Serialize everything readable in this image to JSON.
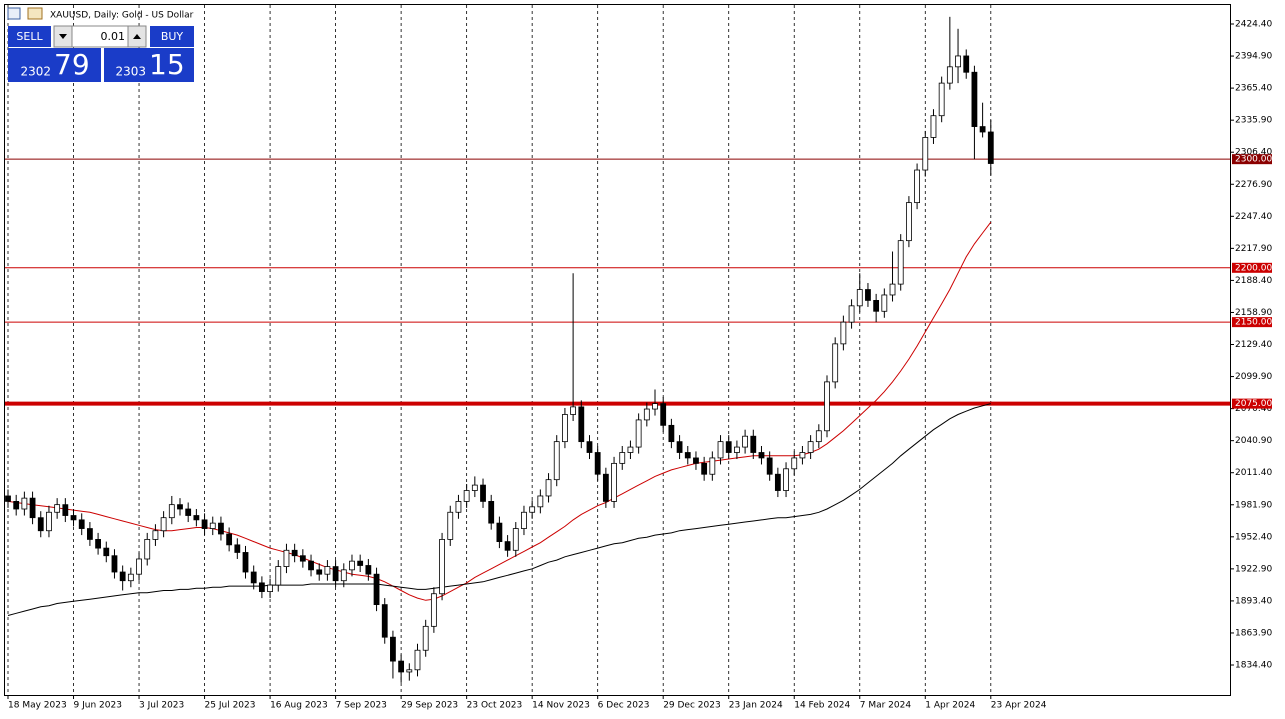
{
  "chart_data": {
    "type": "candlestick",
    "title": "XAUUSD, Daily:  Gold - US Dollar",
    "trade_panel": {
      "sell": "SELL",
      "buy": "BUY",
      "volume": "0.01",
      "bid_big": "2302",
      "bid_small": "79",
      "ask_big": "2303",
      "ask_small": "15"
    },
    "categories": [
      "18 May 2023",
      null,
      null,
      null,
      null,
      null,
      null,
      null,
      "9 Jun 2023",
      null,
      null,
      null,
      null,
      null,
      null,
      null,
      "3 Jul 2023",
      null,
      null,
      null,
      null,
      null,
      null,
      null,
      "25 Jul 2023",
      null,
      null,
      null,
      null,
      null,
      null,
      null,
      "16 Aug 2023",
      null,
      null,
      null,
      null,
      null,
      null,
      null,
      "7 Sep 2023",
      null,
      null,
      null,
      null,
      null,
      null,
      null,
      "29 Sep 2023",
      null,
      null,
      null,
      null,
      null,
      null,
      null,
      "23 Oct 2023",
      null,
      null,
      null,
      null,
      null,
      null,
      null,
      "14 Nov 2023",
      null,
      null,
      null,
      null,
      null,
      null,
      null,
      "6 Dec 2023",
      null,
      null,
      null,
      null,
      null,
      null,
      null,
      "29 Dec 2023",
      null,
      null,
      null,
      null,
      null,
      null,
      null,
      "23 Jan 2024",
      null,
      null,
      null,
      null,
      null,
      null,
      null,
      "14 Feb 2024",
      null,
      null,
      null,
      null,
      null,
      null,
      null,
      "7 Mar 2024",
      null,
      null,
      null,
      null,
      null,
      null,
      null,
      "1 Apr 2024",
      null,
      null,
      null,
      null,
      null,
      null,
      null,
      "23 Apr 2024"
    ],
    "ohlc": [
      [
        1990,
        1996,
        1979,
        1985
      ],
      [
        1985,
        1991,
        1972,
        1978
      ],
      [
        1978,
        1994,
        1972,
        1988
      ],
      [
        1988,
        1994,
        1964,
        1970
      ],
      [
        1970,
        1976,
        1952,
        1958
      ],
      [
        1958,
        1981,
        1952,
        1975
      ],
      [
        1975,
        1988,
        1969,
        1982
      ],
      [
        1982,
        1988,
        1966,
        1972
      ],
      [
        1972,
        1978,
        1962,
        1968
      ],
      [
        1968,
        1974,
        1954,
        1960
      ],
      [
        1960,
        1966,
        1944,
        1950
      ],
      [
        1950,
        1956,
        1936,
        1942
      ],
      [
        1942,
        1948,
        1929,
        1935
      ],
      [
        1935,
        1941,
        1914,
        1920
      ],
      [
        1920,
        1926,
        1903,
        1912
      ],
      [
        1912,
        1924,
        1906,
        1918
      ],
      [
        1918,
        1938,
        1912,
        1932
      ],
      [
        1932,
        1956,
        1926,
        1950
      ],
      [
        1950,
        1964,
        1944,
        1958
      ],
      [
        1958,
        1976,
        1952,
        1970
      ],
      [
        1970,
        1990,
        1964,
        1982
      ],
      [
        1982,
        1988,
        1972,
        1978
      ],
      [
        1978,
        1984,
        1966,
        1972
      ],
      [
        1972,
        1978,
        1962,
        1968
      ],
      [
        1968,
        1974,
        1954,
        1960
      ],
      [
        1960,
        1971,
        1954,
        1965
      ],
      [
        1965,
        1971,
        1949,
        1955
      ],
      [
        1955,
        1961,
        1939,
        1945
      ],
      [
        1945,
        1951,
        1932,
        1938
      ],
      [
        1938,
        1944,
        1914,
        1920
      ],
      [
        1920,
        1926,
        1904,
        1910
      ],
      [
        1910,
        1916,
        1896,
        1902
      ],
      [
        1902,
        1914,
        1896,
        1908
      ],
      [
        1908,
        1931,
        1902,
        1925
      ],
      [
        1925,
        1946,
        1919,
        1940
      ],
      [
        1940,
        1946,
        1929,
        1935
      ],
      [
        1935,
        1941,
        1924,
        1930
      ],
      [
        1930,
        1936,
        1916,
        1922
      ],
      [
        1922,
        1928,
        1912,
        1918
      ],
      [
        1918,
        1931,
        1912,
        1925
      ],
      [
        1925,
        1931,
        1906,
        1912
      ],
      [
        1912,
        1928,
        1906,
        1922
      ],
      [
        1922,
        1936,
        1916,
        1930
      ],
      [
        1930,
        1936,
        1920,
        1926
      ],
      [
        1926,
        1932,
        1912,
        1918
      ],
      [
        1918,
        1924,
        1884,
        1890
      ],
      [
        1890,
        1896,
        1854,
        1860
      ],
      [
        1860,
        1866,
        1822,
        1838
      ],
      [
        1838,
        1844,
        1818,
        1828
      ],
      [
        1828,
        1836,
        1820,
        1830
      ],
      [
        1830,
        1854,
        1824,
        1848
      ],
      [
        1848,
        1876,
        1842,
        1870
      ],
      [
        1870,
        1906,
        1864,
        1900
      ],
      [
        1900,
        1956,
        1894,
        1950
      ],
      [
        1950,
        1981,
        1944,
        1975
      ],
      [
        1975,
        1991,
        1969,
        1985
      ],
      [
        1985,
        2001,
        1979,
        1995
      ],
      [
        1995,
        2008,
        1989,
        2000
      ],
      [
        2000,
        2006,
        1979,
        1985
      ],
      [
        1985,
        1991,
        1959,
        1965
      ],
      [
        1965,
        1971,
        1942,
        1948
      ],
      [
        1948,
        1954,
        1934,
        1940
      ],
      [
        1940,
        1966,
        1934,
        1960
      ],
      [
        1960,
        1981,
        1954,
        1975
      ],
      [
        1975,
        1986,
        1969,
        1980
      ],
      [
        1980,
        1996,
        1974,
        1990
      ],
      [
        1990,
        2011,
        1984,
        2005
      ],
      [
        2005,
        2046,
        1999,
        2040
      ],
      [
        2040,
        2071,
        2034,
        2065
      ],
      [
        2065,
        2195,
        2059,
        2072
      ],
      [
        2072,
        2078,
        2034,
        2040
      ],
      [
        2040,
        2046,
        2024,
        2030
      ],
      [
        2030,
        2036,
        2004,
        2010
      ],
      [
        2010,
        2016,
        1979,
        1985
      ],
      [
        1985,
        2026,
        1979,
        2020
      ],
      [
        2020,
        2036,
        2014,
        2030
      ],
      [
        2030,
        2041,
        2024,
        2035
      ],
      [
        2035,
        2066,
        2029,
        2060
      ],
      [
        2060,
        2076,
        2054,
        2070
      ],
      [
        2070,
        2088,
        2064,
        2075
      ],
      [
        2075,
        2081,
        2049,
        2055
      ],
      [
        2055,
        2061,
        2034,
        2040
      ],
      [
        2040,
        2046,
        2024,
        2030
      ],
      [
        2030,
        2036,
        2019,
        2025
      ],
      [
        2025,
        2031,
        2014,
        2020
      ],
      [
        2020,
        2026,
        2004,
        2010
      ],
      [
        2010,
        2031,
        2004,
        2025
      ],
      [
        2025,
        2046,
        2019,
        2040
      ],
      [
        2040,
        2046,
        2024,
        2030
      ],
      [
        2030,
        2041,
        2024,
        2035
      ],
      [
        2035,
        2051,
        2029,
        2045
      ],
      [
        2045,
        2051,
        2024,
        2030
      ],
      [
        2030,
        2036,
        2019,
        2025
      ],
      [
        2025,
        2031,
        2004,
        2010
      ],
      [
        2010,
        2016,
        1989,
        1995
      ],
      [
        1995,
        2021,
        1989,
        2015
      ],
      [
        2015,
        2031,
        2009,
        2025
      ],
      [
        2025,
        2036,
        2019,
        2030
      ],
      [
        2030,
        2046,
        2024,
        2040
      ],
      [
        2040,
        2056,
        2034,
        2050
      ],
      [
        2050,
        2101,
        2044,
        2095
      ],
      [
        2095,
        2136,
        2089,
        2130
      ],
      [
        2130,
        2156,
        2124,
        2150
      ],
      [
        2150,
        2171,
        2144,
        2165
      ],
      [
        2165,
        2195,
        2159,
        2180
      ],
      [
        2180,
        2186,
        2164,
        2170
      ],
      [
        2170,
        2176,
        2150,
        2160
      ],
      [
        2160,
        2181,
        2154,
        2175
      ],
      [
        2175,
        2215,
        2169,
        2185
      ],
      [
        2185,
        2231,
        2179,
        2225
      ],
      [
        2225,
        2266,
        2219,
        2260
      ],
      [
        2260,
        2296,
        2254,
        2290
      ],
      [
        2290,
        2326,
        2284,
        2320
      ],
      [
        2320,
        2346,
        2314,
        2340
      ],
      [
        2340,
        2376,
        2334,
        2370
      ],
      [
        2370,
        2431,
        2364,
        2385
      ],
      [
        2385,
        2420,
        2370,
        2395
      ],
      [
        2395,
        2401,
        2374,
        2380
      ],
      [
        2380,
        2386,
        2300,
        2330
      ],
      [
        2330,
        2352,
        2320,
        2325
      ],
      [
        2325,
        2336,
        2285,
        2296
      ]
    ],
    "moving_averages": [
      {
        "color": "#cc0000",
        "values": [
          1985,
          1984,
          1983,
          1982,
          1981,
          1980,
          1979,
          1978,
          1977,
          1976,
          1975,
          1973,
          1971,
          1969,
          1967,
          1965,
          1963,
          1961,
          1959,
          1958,
          1958,
          1959,
          1960,
          1961,
          1961,
          1960,
          1958,
          1956,
          1954,
          1951,
          1948,
          1945,
          1942,
          1940,
          1938,
          1936,
          1933,
          1930,
          1927,
          1924,
          1922,
          1920,
          1918,
          1917,
          1916,
          1914,
          1911,
          1907,
          1903,
          1899,
          1896,
          1894,
          1895,
          1898,
          1902,
          1906,
          1910,
          1915,
          1919,
          1923,
          1927,
          1931,
          1935,
          1939,
          1943,
          1947,
          1952,
          1957,
          1962,
          1968,
          1973,
          1977,
          1981,
          1984,
          1988,
          1992,
          1996,
          2000,
          2004,
          2008,
          2011,
          2014,
          2016,
          2018,
          2020,
          2021,
          2022,
          2023,
          2024,
          2025,
          2026,
          2027,
          2027,
          2027,
          2027,
          2027,
          2027,
          2028,
          2030,
          2033,
          2038,
          2044,
          2050,
          2057,
          2064,
          2071,
          2078,
          2086,
          2095,
          2105,
          2116,
          2128,
          2141,
          2154,
          2167,
          2180,
          2195,
          2210,
          2222,
          2232,
          2242
        ]
      },
      {
        "color": "#000000",
        "values": [
          1880,
          1882,
          1884,
          1886,
          1888,
          1889,
          1891,
          1892,
          1893,
          1894,
          1895,
          1896,
          1897,
          1898,
          1899,
          1900,
          1901,
          1901,
          1902,
          1903,
          1903,
          1904,
          1904,
          1905,
          1905,
          1906,
          1906,
          1907,
          1907,
          1907,
          1907,
          1907,
          1908,
          1908,
          1908,
          1908,
          1908,
          1909,
          1909,
          1909,
          1909,
          1909,
          1909,
          1909,
          1909,
          1909,
          1908,
          1907,
          1906,
          1905,
          1904,
          1904,
          1905,
          1906,
          1907,
          1908,
          1909,
          1910,
          1911,
          1913,
          1915,
          1917,
          1919,
          1921,
          1923,
          1926,
          1929,
          1931,
          1934,
          1936,
          1938,
          1940,
          1942,
          1944,
          1946,
          1947,
          1949,
          1951,
          1952,
          1954,
          1955,
          1956,
          1958,
          1959,
          1960,
          1961,
          1962,
          1963,
          1964,
          1965,
          1966,
          1967,
          1968,
          1969,
          1970,
          1970,
          1971,
          1972,
          1973,
          1975,
          1978,
          1982,
          1986,
          1991,
          1996,
          2002,
          2008,
          2014,
          2020,
          2027,
          2033,
          2039,
          2045,
          2051,
          2056,
          2061,
          2065,
          2068,
          2071,
          2073,
          2075
        ]
      }
    ],
    "levels": [
      {
        "value": 2300,
        "label": "2300.00",
        "color": "#8b0000",
        "line_width": 1
      },
      {
        "value": 2200,
        "label": "2200.00",
        "color": "#cc0000",
        "line_width": 1
      },
      {
        "value": 2150,
        "label": "2150.00",
        "color": "#cc0000",
        "line_width": 1
      },
      {
        "value": 2075,
        "label": "2075.00",
        "color": "#cc0000",
        "line_width": 4
      }
    ],
    "ylim": [
      1806.8,
      2441.9
    ],
    "yticks": [
      {
        "value": 2424.4,
        "label": "2424.40"
      },
      {
        "value": 2394.9,
        "label": "2394.90"
      },
      {
        "value": 2365.4,
        "label": "2365.40"
      },
      {
        "value": 2335.9,
        "label": "2335.90"
      },
      {
        "value": 2306.4,
        "label": "2306.40"
      },
      {
        "value": 2276.9,
        "label": "2276.90"
      },
      {
        "value": 2247.4,
        "label": "2247.40"
      },
      {
        "value": 2217.9,
        "label": "2217.90"
      },
      {
        "value": 2188.4,
        "label": "2188.40"
      },
      {
        "value": 2158.9,
        "label": "2158.90"
      },
      {
        "value": 2129.4,
        "label": "2129.40"
      },
      {
        "value": 2099.9,
        "label": "2099.90"
      },
      {
        "value": 2070.4,
        "label": "2070.40"
      },
      {
        "value": 2040.9,
        "label": "2040.90"
      },
      {
        "value": 2011.4,
        "label": "2011.40"
      },
      {
        "value": 1981.9,
        "label": "1981.90"
      },
      {
        "value": 1952.4,
        "label": "1952.40"
      },
      {
        "value": 1922.9,
        "label": "1922.90"
      },
      {
        "value": 1893.4,
        "label": "1893.40"
      },
      {
        "value": 1863.9,
        "label": "1863.90"
      },
      {
        "value": 1834.4,
        "label": "1834.40"
      }
    ],
    "up_color": "#ffffff",
    "down_color": "#000000"
  }
}
